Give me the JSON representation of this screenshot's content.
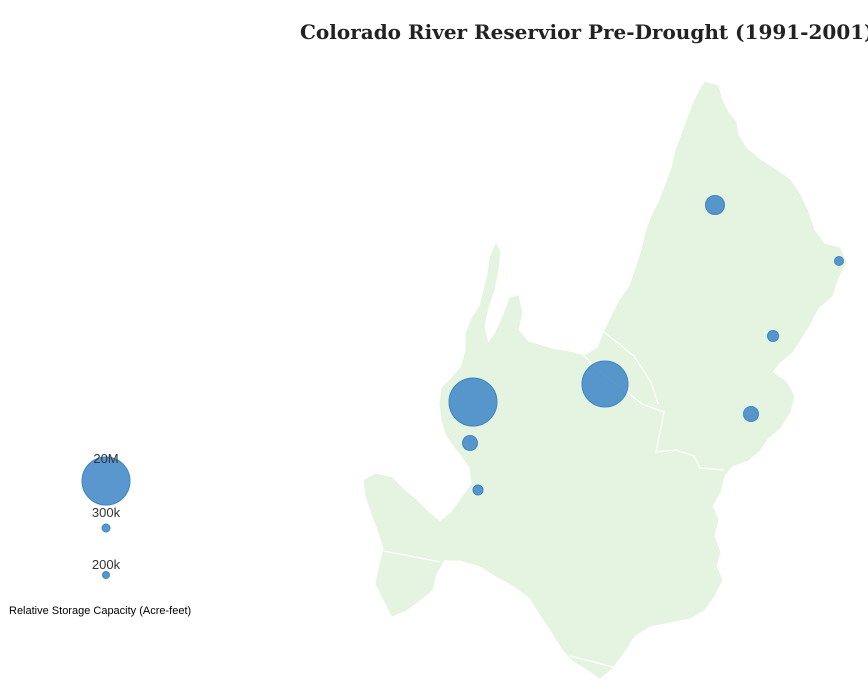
{
  "map": {
    "title": "Colorado River Reservior Pre-Drought (1991-2001)",
    "basin_fill": "#e5f4e0",
    "marker_fill": "#3d85c6",
    "marker_opacity": 0.85
  },
  "legend": {
    "title": "Relative Storage Capacity (Acre-feet)",
    "items": [
      {
        "label": "20M",
        "capacity_acre_feet": 20000000
      },
      {
        "label": "300k",
        "capacity_acre_feet": 300000
      },
      {
        "label": "200k",
        "capacity_acre_feet": 200000
      }
    ]
  },
  "reservoirs": [
    {
      "marker": "reservoir-north",
      "relative_size": "medium"
    },
    {
      "marker": "reservoir-northeast-edge",
      "relative_size": "small"
    },
    {
      "marker": "reservoir-east",
      "relative_size": "small"
    },
    {
      "marker": "reservoir-southeast",
      "relative_size": "medium"
    },
    {
      "marker": "reservoir-central-large",
      "relative_size": "large"
    },
    {
      "marker": "reservoir-west-large",
      "relative_size": "large"
    },
    {
      "marker": "reservoir-west-medium",
      "relative_size": "medium"
    },
    {
      "marker": "reservoir-west-small",
      "relative_size": "small"
    }
  ]
}
